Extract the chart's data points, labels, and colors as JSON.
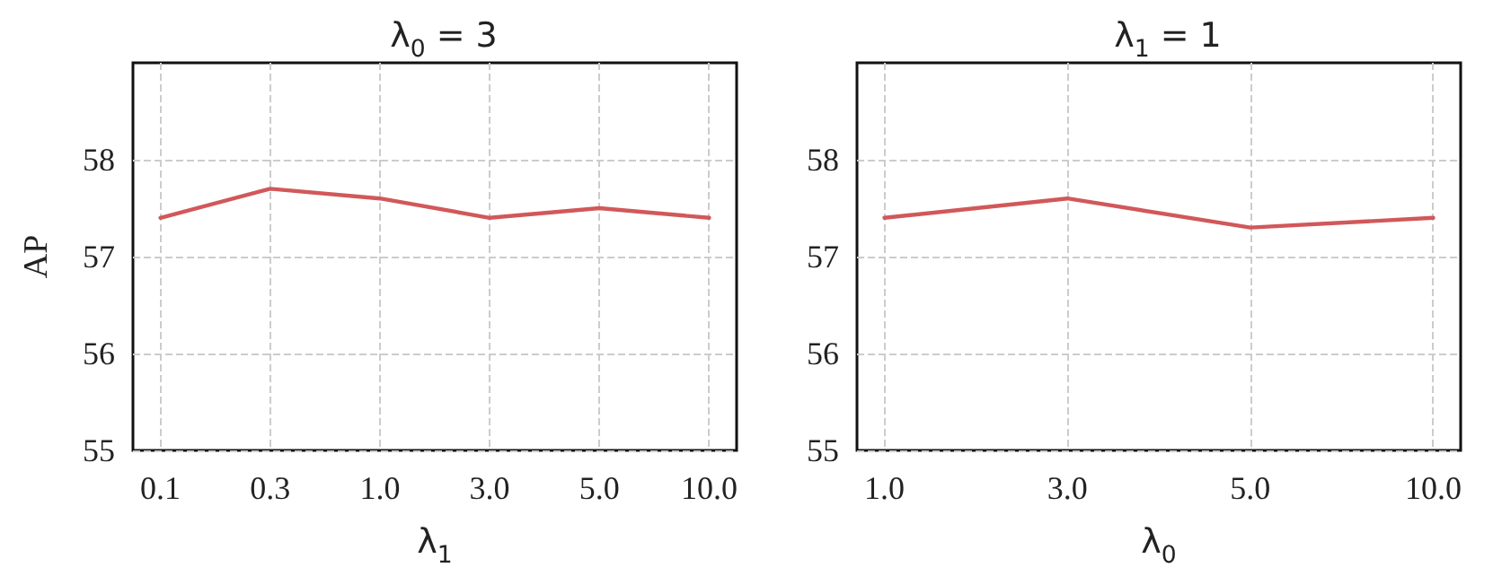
{
  "chart_data": [
    {
      "type": "line",
      "title": "λ$_{0}$ = 3",
      "xlabel": "λ$_{1}$",
      "ylabel": "AP",
      "categories": [
        "0.1",
        "0.3",
        "1.0",
        "3.0",
        "5.0",
        "10.0"
      ],
      "series": [
        {
          "color": "#d1585a",
          "values": [
            57.4,
            57.7,
            57.6,
            57.4,
            57.5,
            57.4
          ]
        }
      ],
      "ylim": [
        55,
        59
      ],
      "yticks": [
        55,
        56,
        57,
        58
      ],
      "grid": true,
      "marker": "none",
      "line_style": "solid"
    },
    {
      "type": "line",
      "title": "λ$_{1}$ = 1",
      "xlabel": "λ$_{0}$",
      "categories": [
        "1.0",
        "3.0",
        "5.0",
        "10.0"
      ],
      "series": [
        {
          "color": "#d1585a",
          "values": [
            57.4,
            57.6,
            57.3,
            57.4
          ]
        }
      ],
      "ylim": [
        55,
        59
      ],
      "yticks": [
        55,
        56,
        57,
        58
      ],
      "grid": true,
      "marker": "none",
      "line_style": "solid"
    }
  ]
}
